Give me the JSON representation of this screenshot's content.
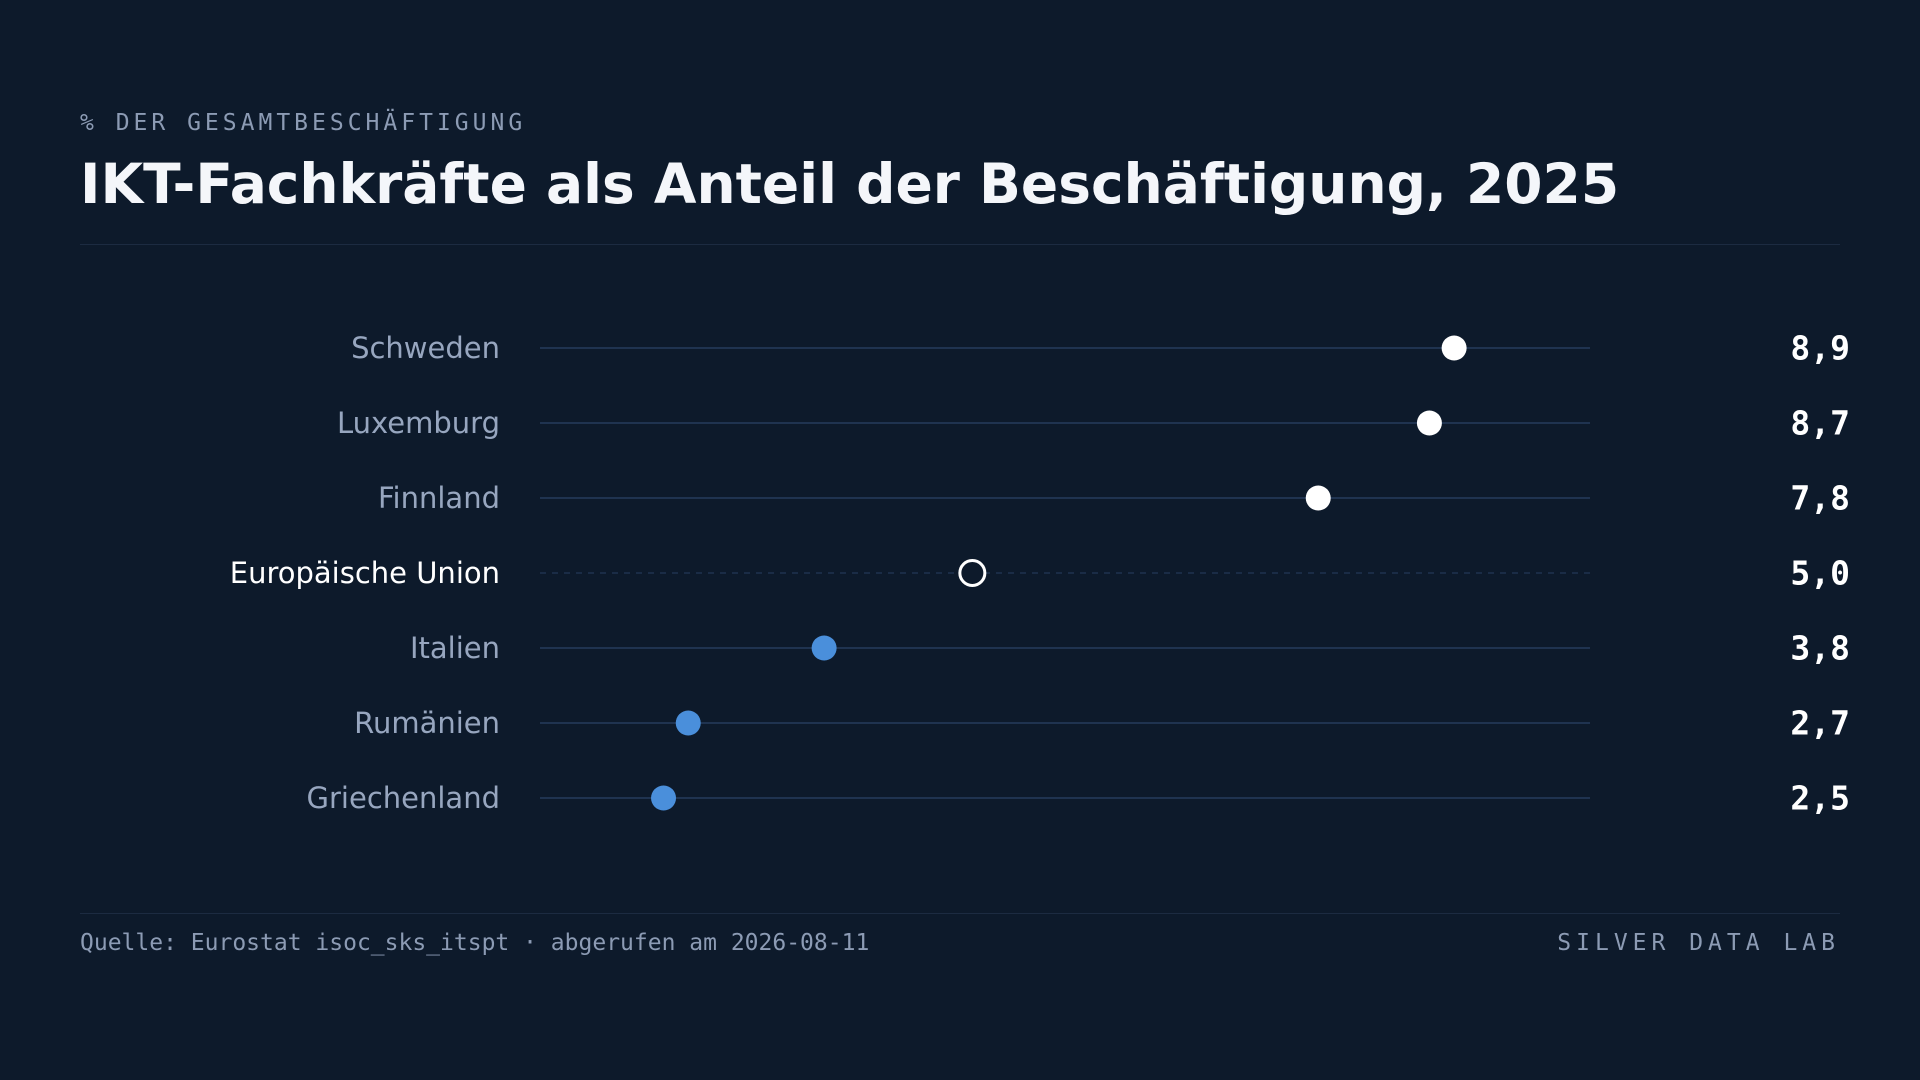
{
  "header": {
    "eyebrow": "% DER GESAMTBESCHÄFTIGUNG",
    "title": "IKT-Fachkräfte als Anteil der Beschäftigung, 2025"
  },
  "footer": {
    "source": "Quelle: Eurostat isoc_sks_itspt · abgerufen am 2026-08-11",
    "brand": "SILVER DATA LAB"
  },
  "colors": {
    "background": "#0d1a2b",
    "high": "#ffffff",
    "low": "#4a8fdb",
    "reference": "#ffffff",
    "label": "#97a6bf",
    "reference_label": "#ffffff",
    "track": "#1f3350",
    "value": "#ffffff"
  },
  "chart_data": {
    "type": "scatter",
    "subtype": "dot-plot",
    "title": "IKT-Fachkräfte als Anteil der Beschäftigung, 2025",
    "unit": "% der Gesamtbeschäftigung",
    "xlim": [
      1.5,
      10
    ],
    "grid": false,
    "legend": "none",
    "categories": [
      "Schweden",
      "Luxemburg",
      "Finnland",
      "Europäische Union",
      "Italien",
      "Rumänien",
      "Griechenland"
    ],
    "values": [
      8.9,
      8.7,
      7.8,
      5.0,
      3.8,
      2.7,
      2.5
    ],
    "value_labels": [
      "8,9",
      "8,7",
      "7,8",
      "5,0",
      "3,8",
      "2,7",
      "2,5"
    ],
    "groups": [
      "high",
      "high",
      "high",
      "reference",
      "low",
      "low",
      "low"
    ]
  }
}
